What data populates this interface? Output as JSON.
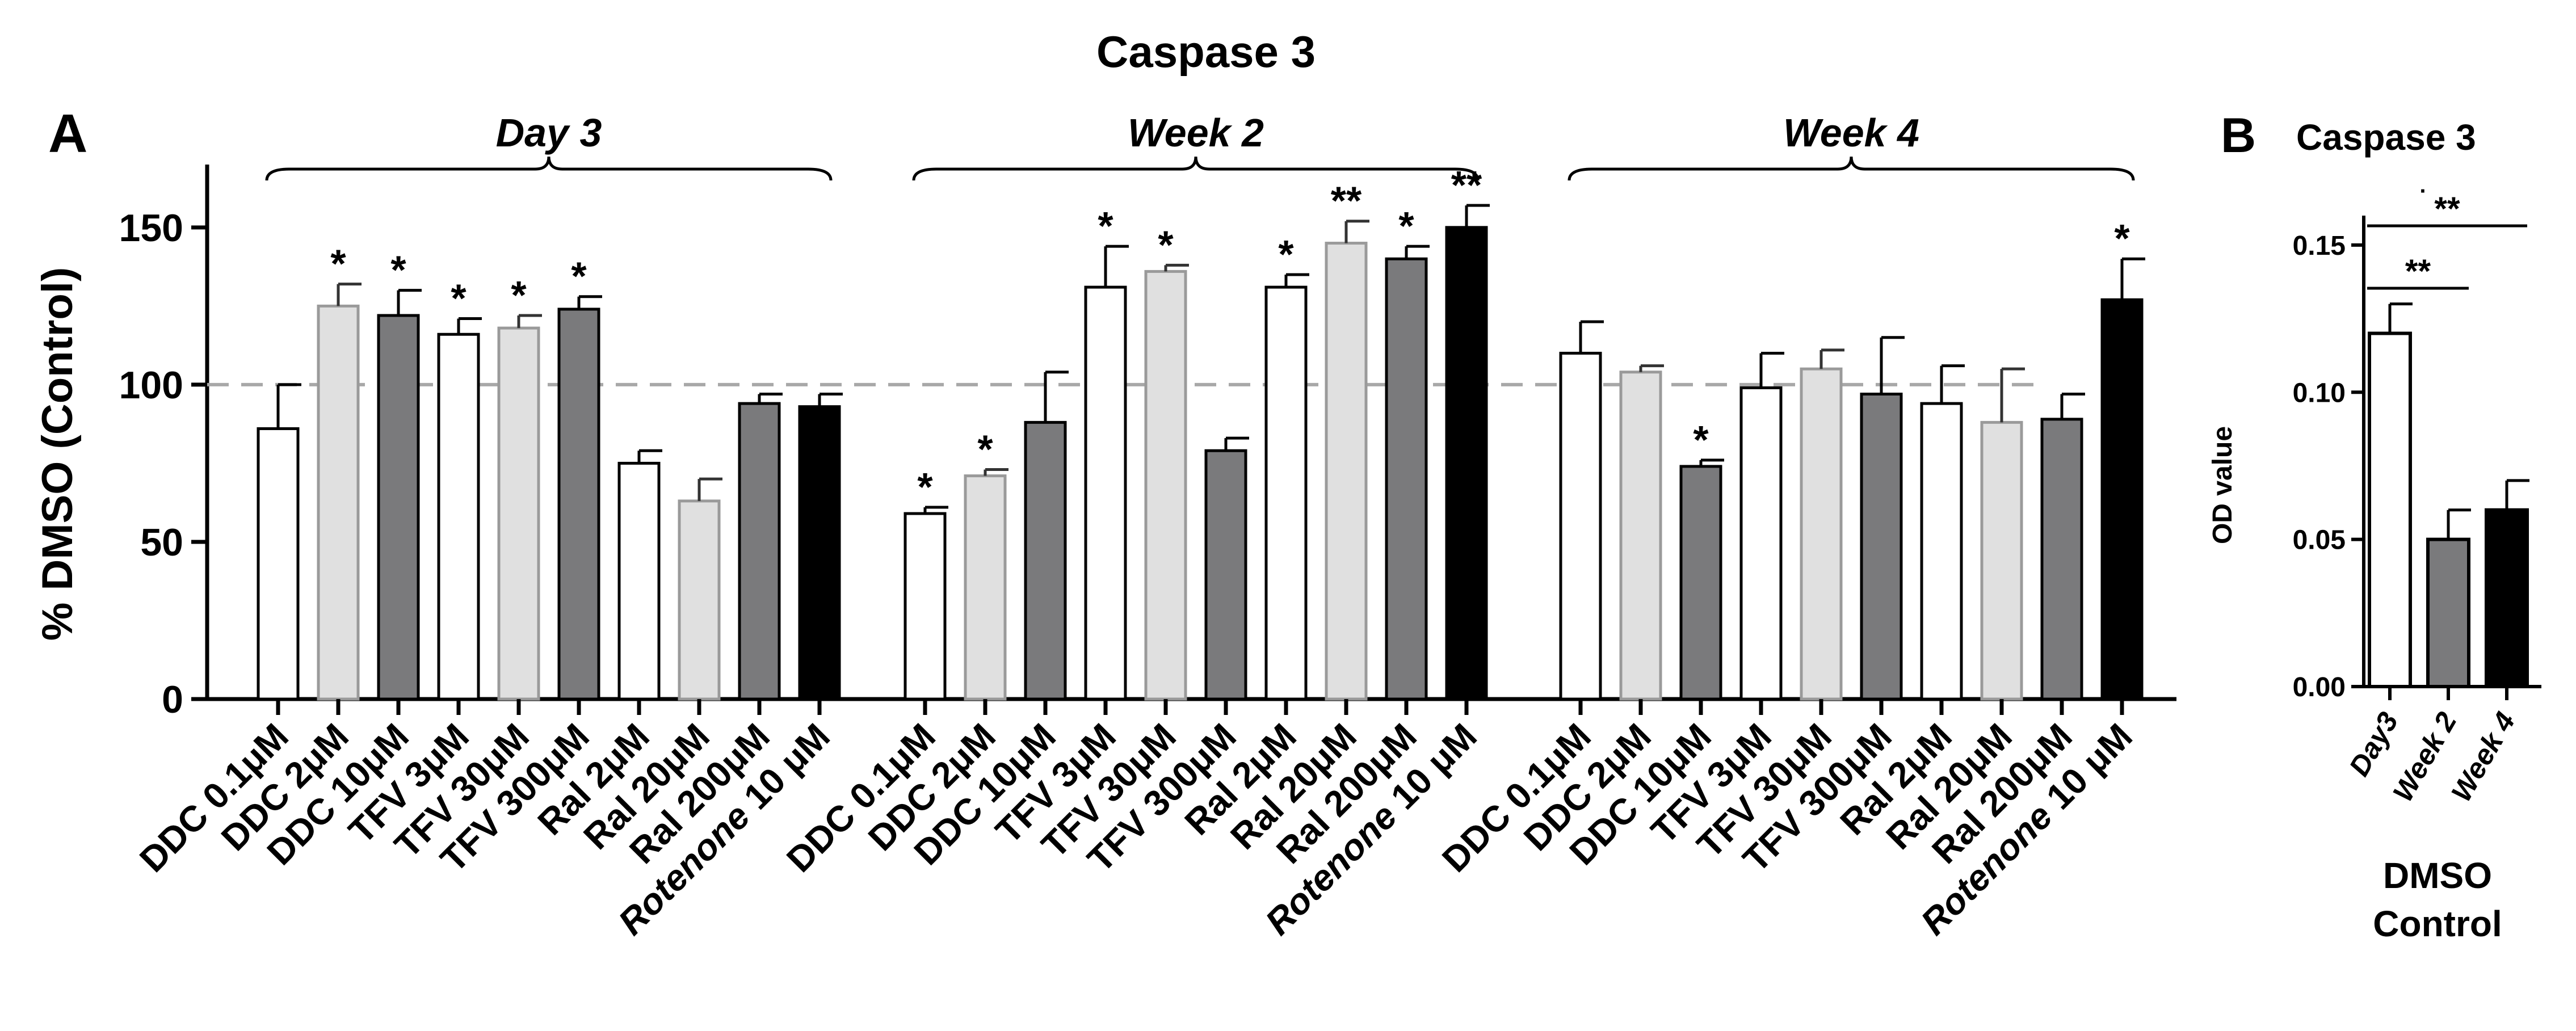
{
  "colors": {
    "white_bar": "#ffffff",
    "light_bar": "#e0e0e0",
    "dark_bar": "#7a7a7c",
    "black_bar": "#000000",
    "outline": "#000000",
    "light_outline": "#9a9a9a",
    "reference_line": "#a8a8a8"
  },
  "chart_data": [
    {
      "id": "A",
      "panel_label": "A",
      "type": "bar",
      "title": "Caspase 3",
      "ylabel": "% DMSO (Control)",
      "xlabel": "",
      "ylim": [
        0,
        170
      ],
      "yticks": [
        0,
        50,
        100,
        150
      ],
      "reference_line": 100,
      "groups": [
        {
          "label": "Day 3",
          "categories": [
            {
              "pre": "DDC 0.1μM",
              "it": "",
              "post": ""
            },
            {
              "pre": "DDC 2μM",
              "it": "",
              "post": ""
            },
            {
              "pre": "DDC 10μM",
              "it": "",
              "post": ""
            },
            {
              "pre": "TFV 3μM",
              "it": "",
              "post": ""
            },
            {
              "pre": "TFV 30μM",
              "it": "",
              "post": ""
            },
            {
              "pre": "TFV 300μM",
              "it": "",
              "post": ""
            },
            {
              "pre": "Ral 2μM",
              "it": "",
              "post": ""
            },
            {
              "pre": "Ral 20μM",
              "it": "",
              "post": ""
            },
            {
              "pre": "Ral  200μM",
              "it": "",
              "post": ""
            },
            {
              "pre": "",
              "it": "Rotenone",
              "post": " 10 μM"
            }
          ],
          "values": [
            86,
            125,
            122,
            116,
            118,
            124,
            75,
            63,
            94,
            93
          ],
          "errors": [
            14,
            7,
            8,
            5,
            4,
            4,
            4,
            7,
            3,
            4
          ],
          "fills": [
            "white",
            "light",
            "dark",
            "white",
            "light",
            "dark",
            "white",
            "light",
            "dark",
            "black"
          ],
          "significance": [
            "",
            "*",
            "*",
            "*",
            "*",
            "*",
            "",
            "",
            "",
            ""
          ]
        },
        {
          "label": "Week 2",
          "categories": [
            {
              "pre": "DDC 0.1μM",
              "it": "",
              "post": ""
            },
            {
              "pre": "DDC 2μM",
              "it": "",
              "post": ""
            },
            {
              "pre": "DDC 10μM",
              "it": "",
              "post": ""
            },
            {
              "pre": "TFV 3μM",
              "it": "",
              "post": ""
            },
            {
              "pre": "TFV 30μM",
              "it": "",
              "post": ""
            },
            {
              "pre": "TFV 300μM",
              "it": "",
              "post": ""
            },
            {
              "pre": "Ral 2μM",
              "it": "",
              "post": ""
            },
            {
              "pre": "Ral 20μM",
              "it": "",
              "post": ""
            },
            {
              "pre": "Ral  200μM",
              "it": "",
              "post": ""
            },
            {
              "pre": "",
              "it": "Rotenone",
              "post": " 10 μM"
            }
          ],
          "values": [
            59,
            71,
            88,
            131,
            136,
            79,
            131,
            145,
            140,
            150
          ],
          "errors": [
            2,
            2,
            16,
            13,
            2,
            4,
            4,
            7,
            4,
            7
          ],
          "fills": [
            "white",
            "light",
            "dark",
            "white",
            "light",
            "dark",
            "white",
            "light",
            "dark",
            "black"
          ],
          "significance": [
            "*",
            "*",
            "",
            "*",
            "*",
            "",
            "*",
            "**",
            "*",
            "**"
          ]
        },
        {
          "label": "Week 4",
          "categories": [
            {
              "pre": "DDC 0.1μM",
              "it": "",
              "post": ""
            },
            {
              "pre": "DDC 2μM",
              "it": "",
              "post": ""
            },
            {
              "pre": "DDC 10μM",
              "it": "",
              "post": ""
            },
            {
              "pre": "TFV 3μM",
              "it": "",
              "post": ""
            },
            {
              "pre": "TFV 30μM",
              "it": "",
              "post": ""
            },
            {
              "pre": "TFV 300μM",
              "it": "",
              "post": ""
            },
            {
              "pre": "Ral 2μM",
              "it": "",
              "post": ""
            },
            {
              "pre": "Ral 20μM",
              "it": "",
              "post": ""
            },
            {
              "pre": "Ral  200μM",
              "it": "",
              "post": ""
            },
            {
              "pre": "",
              "it": "Rotenone",
              "post": " 10 μM"
            }
          ],
          "values": [
            110,
            104,
            74,
            99,
            105,
            97,
            94,
            88,
            89,
            127
          ],
          "errors": [
            10,
            2,
            2,
            11,
            6,
            18,
            12,
            17,
            8,
            13
          ],
          "fills": [
            "white",
            "light",
            "dark",
            "white",
            "light",
            "dark",
            "white",
            "light",
            "dark",
            "black"
          ],
          "significance": [
            "",
            "",
            "*",
            "",
            "",
            "",
            "",
            "",
            "",
            "*"
          ]
        }
      ]
    },
    {
      "id": "B",
      "panel_label": "B",
      "type": "bar",
      "title": "Caspase 3",
      "ylabel": "OD value",
      "xlabel": "DMSO Control",
      "xlabel_lines": [
        "DMSO",
        "Control"
      ],
      "ylim": [
        0,
        0.16
      ],
      "yticks": [
        "0.00",
        "0.05",
        "0.10",
        "0.15"
      ],
      "categories": [
        "Day3",
        "Week 2",
        "Week 4"
      ],
      "values": [
        0.12,
        0.05,
        0.06
      ],
      "errors": [
        0.01,
        0.01,
        0.01
      ],
      "fills": [
        "white",
        "dark",
        "black"
      ],
      "comparisons": [
        {
          "from": "Day3",
          "to": "Week 2",
          "label": "**"
        },
        {
          "from": "Day3",
          "to": "Week 4",
          "label": "**",
          "prefix": "·"
        }
      ]
    }
  ]
}
